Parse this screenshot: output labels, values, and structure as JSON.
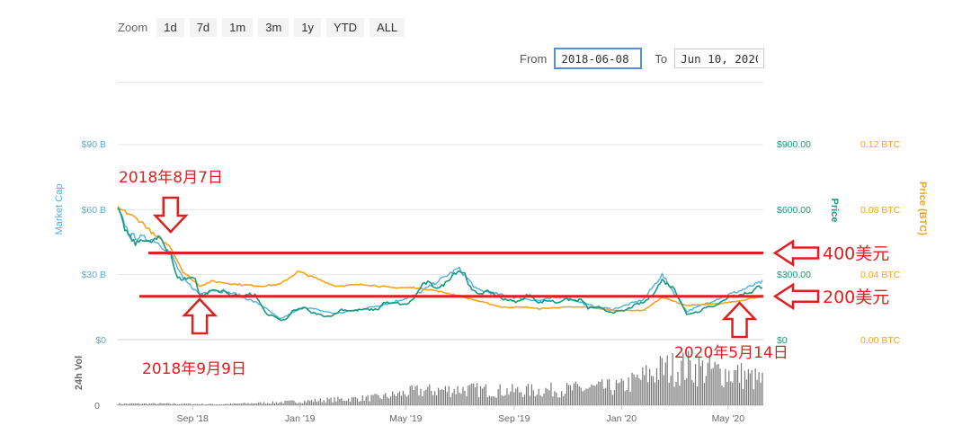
{
  "toolbar": {
    "zoom_label": "Zoom",
    "buttons": [
      "1d",
      "7d",
      "1m",
      "3m",
      "1y",
      "YTD",
      "ALL"
    ],
    "from_label": "From",
    "from_value": "2018-06-08",
    "to_label": "To",
    "to_value": "Jun 10, 2020"
  },
  "colors": {
    "market_cap": "#4faee3",
    "price": "#159b7b",
    "price_btc": "#f7a21b",
    "annotation": "#e02020",
    "volume": "#777777"
  },
  "chart_data": {
    "type": "line",
    "xlim": [
      "2018-06-08",
      "2020-06-10"
    ],
    "x_ticks": [
      {
        "date": "2018-09-01",
        "label": "Sep '18"
      },
      {
        "date": "2019-01-01",
        "label": "Jan '19"
      },
      {
        "date": "2019-05-01",
        "label": "May '19"
      },
      {
        "date": "2019-09-01",
        "label": "Sep '19"
      },
      {
        "date": "2020-01-01",
        "label": "Jan '20"
      },
      {
        "date": "2020-05-01",
        "label": "May '20"
      }
    ],
    "left_axis": {
      "label": "Market Cap",
      "ticks": [
        "$0",
        "$30 B",
        "$60 B",
        "$90 B"
      ],
      "ylim": [
        0,
        90
      ]
    },
    "right_axis": {
      "label": "Price",
      "ticks": [
        "$0",
        "$300.00",
        "$600.00",
        "$900.00"
      ],
      "ylim": [
        0,
        900
      ]
    },
    "right_axis_2": {
      "label": "Price (BTC)",
      "ticks": [
        "0.00 BTC",
        "0.04 BTC",
        "0.08 BTC",
        "0.12 BTC"
      ],
      "ylim": [
        0,
        0.12
      ]
    },
    "volume_axis": {
      "label": "24h Vol",
      "ticks": [
        "0"
      ]
    },
    "series": [
      {
        "name": "Price",
        "unit": "USD",
        "points": [
          [
            "2018-06-08",
            605
          ],
          [
            "2018-06-15",
            520
          ],
          [
            "2018-06-22",
            470
          ],
          [
            "2018-06-29",
            440
          ],
          [
            "2018-07-06",
            470
          ],
          [
            "2018-07-13",
            445
          ],
          [
            "2018-07-20",
            460
          ],
          [
            "2018-07-27",
            470
          ],
          [
            "2018-08-03",
            410
          ],
          [
            "2018-08-07",
            400
          ],
          [
            "2018-08-14",
            285
          ],
          [
            "2018-08-21",
            280
          ],
          [
            "2018-08-28",
            285
          ],
          [
            "2018-09-04",
            285
          ],
          [
            "2018-09-09",
            200
          ],
          [
            "2018-09-16",
            210
          ],
          [
            "2018-09-23",
            230
          ],
          [
            "2018-09-30",
            225
          ],
          [
            "2018-10-07",
            225
          ],
          [
            "2018-10-14",
            205
          ],
          [
            "2018-10-21",
            205
          ],
          [
            "2018-10-28",
            200
          ],
          [
            "2018-11-04",
            210
          ],
          [
            "2018-11-11",
            205
          ],
          [
            "2018-11-18",
            155
          ],
          [
            "2018-11-25",
            115
          ],
          [
            "2018-12-02",
            110
          ],
          [
            "2018-12-09",
            90
          ],
          [
            "2018-12-16",
            92
          ],
          [
            "2018-12-23",
            130
          ],
          [
            "2018-12-30",
            140
          ],
          [
            "2019-01-06",
            150
          ],
          [
            "2019-01-13",
            125
          ],
          [
            "2019-01-20",
            120
          ],
          [
            "2019-01-27",
            110
          ],
          [
            "2019-02-03",
            108
          ],
          [
            "2019-02-10",
            118
          ],
          [
            "2019-02-17",
            140
          ],
          [
            "2019-02-24",
            135
          ],
          [
            "2019-03-03",
            133
          ],
          [
            "2019-03-10",
            138
          ],
          [
            "2019-03-17",
            140
          ],
          [
            "2019-03-24",
            138
          ],
          [
            "2019-03-31",
            141
          ],
          [
            "2019-04-07",
            175
          ],
          [
            "2019-04-14",
            165
          ],
          [
            "2019-04-21",
            170
          ],
          [
            "2019-04-28",
            160
          ],
          [
            "2019-05-05",
            170
          ],
          [
            "2019-05-12",
            200
          ],
          [
            "2019-05-19",
            250
          ],
          [
            "2019-05-26",
            265
          ],
          [
            "2019-06-02",
            245
          ],
          [
            "2019-06-09",
            240
          ],
          [
            "2019-06-16",
            265
          ],
          [
            "2019-06-23",
            300
          ],
          [
            "2019-06-30",
            320
          ],
          [
            "2019-07-07",
            305
          ],
          [
            "2019-07-14",
            230
          ],
          [
            "2019-07-21",
            215
          ],
          [
            "2019-07-28",
            215
          ],
          [
            "2019-08-04",
            225
          ],
          [
            "2019-08-11",
            205
          ],
          [
            "2019-08-18",
            190
          ],
          [
            "2019-08-25",
            185
          ],
          [
            "2019-09-01",
            175
          ],
          [
            "2019-09-08",
            178
          ],
          [
            "2019-09-15",
            205
          ],
          [
            "2019-09-22",
            200
          ],
          [
            "2019-09-29",
            168
          ],
          [
            "2019-10-06",
            180
          ],
          [
            "2019-10-13",
            180
          ],
          [
            "2019-10-20",
            170
          ],
          [
            "2019-10-27",
            185
          ],
          [
            "2019-11-03",
            185
          ],
          [
            "2019-11-10",
            180
          ],
          [
            "2019-11-17",
            185
          ],
          [
            "2019-11-24",
            145
          ],
          [
            "2019-12-01",
            150
          ],
          [
            "2019-12-08",
            145
          ],
          [
            "2019-12-15",
            132
          ],
          [
            "2019-12-22",
            127
          ],
          [
            "2019-12-29",
            130
          ],
          [
            "2020-01-05",
            135
          ],
          [
            "2020-01-12",
            150
          ],
          [
            "2020-01-19",
            165
          ],
          [
            "2020-01-26",
            170
          ],
          [
            "2020-02-02",
            195
          ],
          [
            "2020-02-09",
            230
          ],
          [
            "2020-02-16",
            275
          ],
          [
            "2020-02-23",
            255
          ],
          [
            "2020-03-01",
            235
          ],
          [
            "2020-03-08",
            180
          ],
          [
            "2020-03-15",
            115
          ],
          [
            "2020-03-22",
            125
          ],
          [
            "2020-03-29",
            130
          ],
          [
            "2020-04-05",
            150
          ],
          [
            "2020-04-12",
            155
          ],
          [
            "2020-04-19",
            160
          ],
          [
            "2020-04-26",
            180
          ],
          [
            "2020-05-03",
            205
          ],
          [
            "2020-05-10",
            200
          ],
          [
            "2020-05-14",
            205
          ],
          [
            "2020-05-21",
            215
          ],
          [
            "2020-05-28",
            220
          ],
          [
            "2020-06-04",
            245
          ],
          [
            "2020-06-10",
            245
          ]
        ]
      },
      {
        "name": "Market Cap",
        "unit": "USD billions",
        "points": [
          [
            "2018-06-08",
            60
          ],
          [
            "2018-06-22",
            48
          ],
          [
            "2018-07-06",
            47
          ],
          [
            "2018-07-20",
            46
          ],
          [
            "2018-08-07",
            40
          ],
          [
            "2018-08-21",
            28
          ],
          [
            "2018-09-09",
            21
          ],
          [
            "2018-09-23",
            23
          ],
          [
            "2018-10-21",
            21
          ],
          [
            "2018-11-18",
            16
          ],
          [
            "2018-12-09",
            9.5
          ],
          [
            "2019-01-06",
            15
          ],
          [
            "2019-02-10",
            12
          ],
          [
            "2019-03-17",
            14.5
          ],
          [
            "2019-04-14",
            17
          ],
          [
            "2019-05-12",
            20.5
          ],
          [
            "2019-06-30",
            33
          ],
          [
            "2019-07-21",
            23
          ],
          [
            "2019-08-25",
            20
          ],
          [
            "2019-09-29",
            18
          ],
          [
            "2019-10-27",
            20
          ],
          [
            "2019-11-24",
            16
          ],
          [
            "2019-12-22",
            14
          ],
          [
            "2020-01-26",
            18.5
          ],
          [
            "2020-02-16",
            30
          ],
          [
            "2020-03-15",
            13
          ],
          [
            "2020-04-26",
            20
          ],
          [
            "2020-05-14",
            22.5
          ],
          [
            "2020-06-10",
            27
          ]
        ]
      },
      {
        "name": "Price (BTC)",
        "unit": "BTC",
        "points": [
          [
            "2018-06-08",
            0.081
          ],
          [
            "2018-06-22",
            0.077
          ],
          [
            "2018-07-06",
            0.072
          ],
          [
            "2018-07-20",
            0.064
          ],
          [
            "2018-08-07",
            0.057
          ],
          [
            "2018-08-21",
            0.042
          ],
          [
            "2018-09-09",
            0.033
          ],
          [
            "2018-09-23",
            0.036
          ],
          [
            "2018-10-21",
            0.034
          ],
          [
            "2018-11-18",
            0.033
          ],
          [
            "2018-12-09",
            0.034
          ],
          [
            "2018-12-30",
            0.042
          ],
          [
            "2019-01-13",
            0.039
          ],
          [
            "2019-02-10",
            0.033
          ],
          [
            "2019-03-17",
            0.034
          ],
          [
            "2019-04-14",
            0.032
          ],
          [
            "2019-05-12",
            0.032
          ],
          [
            "2019-05-26",
            0.031
          ],
          [
            "2019-06-23",
            0.028
          ],
          [
            "2019-07-14",
            0.025
          ],
          [
            "2019-08-18",
            0.02
          ],
          [
            "2019-09-15",
            0.02
          ],
          [
            "2019-09-29",
            0.019
          ],
          [
            "2019-10-27",
            0.02
          ],
          [
            "2019-11-24",
            0.02
          ],
          [
            "2019-12-22",
            0.018
          ],
          [
            "2020-01-26",
            0.018
          ],
          [
            "2020-02-16",
            0.026
          ],
          [
            "2020-03-15",
            0.021
          ],
          [
            "2020-04-19",
            0.022
          ],
          [
            "2020-05-14",
            0.024
          ],
          [
            "2020-06-10",
            0.027
          ]
        ]
      }
    ],
    "volume": {
      "unit": "relative",
      "points": [
        [
          "2018-06-08",
          0.03
        ],
        [
          "2018-08-01",
          0.03
        ],
        [
          "2018-10-01",
          0.02
        ],
        [
          "2018-12-01",
          0.05
        ],
        [
          "2019-02-01",
          0.1
        ],
        [
          "2019-04-01",
          0.15
        ],
        [
          "2019-05-15",
          0.27
        ],
        [
          "2019-07-01",
          0.3
        ],
        [
          "2019-09-01",
          0.27
        ],
        [
          "2019-11-01",
          0.3
        ],
        [
          "2020-01-01",
          0.35
        ],
        [
          "2020-02-15",
          0.68
        ],
        [
          "2020-03-15",
          0.72
        ],
        [
          "2020-04-15",
          0.65
        ],
        [
          "2020-05-14",
          0.58
        ],
        [
          "2020-06-10",
          0.45
        ]
      ]
    },
    "annotations": {
      "hlines": [
        {
          "label": "400美元",
          "price": 400
        },
        {
          "label": "200美元",
          "price": 200
        }
      ],
      "arrows": [
        {
          "label": "2018年8月7日",
          "date": "2018-08-07",
          "direction": "down"
        },
        {
          "label": "2018年9月9日",
          "date": "2018-09-09",
          "direction": "up"
        },
        {
          "label": "2020年5月14日",
          "date": "2020-05-14",
          "direction": "up"
        }
      ]
    }
  }
}
